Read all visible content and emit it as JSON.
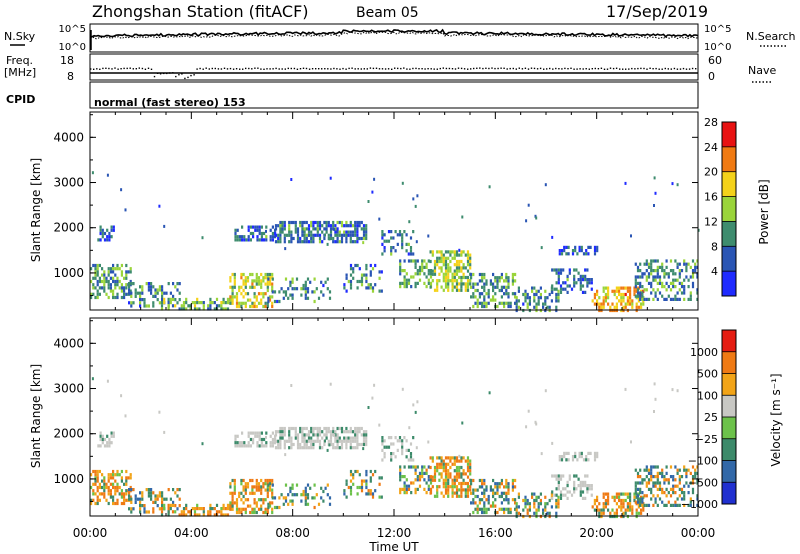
{
  "header": {
    "station": "Zhongshan Station (fitACF)",
    "beam": "Beam 05",
    "date": "17/Sep/2019"
  },
  "top_panels": {
    "nsky_label": "N.Sky",
    "nsky_ticks": [
      "10^5",
      "10^0"
    ],
    "nsearch_label": "N.Search",
    "nsearch_ticks": [
      "10^5",
      "10^0"
    ],
    "freq_label_1": "Freq.",
    "freq_label_2": "[MHz]",
    "freq_ticks": [
      "18",
      "8"
    ],
    "nave_label": "Nave",
    "nave_ticks": [
      "60",
      "0"
    ],
    "cpid_label": "CPID",
    "cpid_text": "normal (fast stereo) 153"
  },
  "chart_data": [
    {
      "type": "heatmap",
      "name": "power",
      "ylabel": "Slant Range [km]",
      "ylim": [
        180,
        4560
      ],
      "yticks": [
        "1000",
        "2000",
        "3000",
        "4000"
      ],
      "colorbar_label": "Power [dB]",
      "colorbar_ticks": [
        "4",
        "8",
        "12",
        "16",
        "20",
        "24",
        "28"
      ],
      "colorbar_colors": [
        "#1f2bff",
        "#2a55b4",
        "#3e8c6e",
        "#9ad43a",
        "#f4d21a",
        "#f07a12",
        "#e81212"
      ],
      "colorbar_range": [
        0,
        32
      ]
    },
    {
      "type": "heatmap",
      "name": "velocity",
      "ylabel": "Slant Range [km]",
      "ylim": [
        180,
        4560
      ],
      "yticks": [
        "1000",
        "2000",
        "3000",
        "4000"
      ],
      "xlabel": "Time UT",
      "xticks": [
        "00:00",
        "04:00",
        "08:00",
        "12:00",
        "16:00",
        "20:00",
        "00:00"
      ],
      "xlim": [
        0,
        24
      ],
      "colorbar_label": "Velocity [m s⁻¹]",
      "colorbar_ticks": [
        "1000",
        "500",
        "100",
        "25",
        "−25",
        "−100",
        "−500",
        "−1000"
      ],
      "colorbar_colors": [
        "#2030d0",
        "#3268a8",
        "#3c8a6a",
        "#6cc24a",
        "#c8c8c4",
        "#f2a418",
        "#ef7a14",
        "#e51d12"
      ]
    }
  ]
}
